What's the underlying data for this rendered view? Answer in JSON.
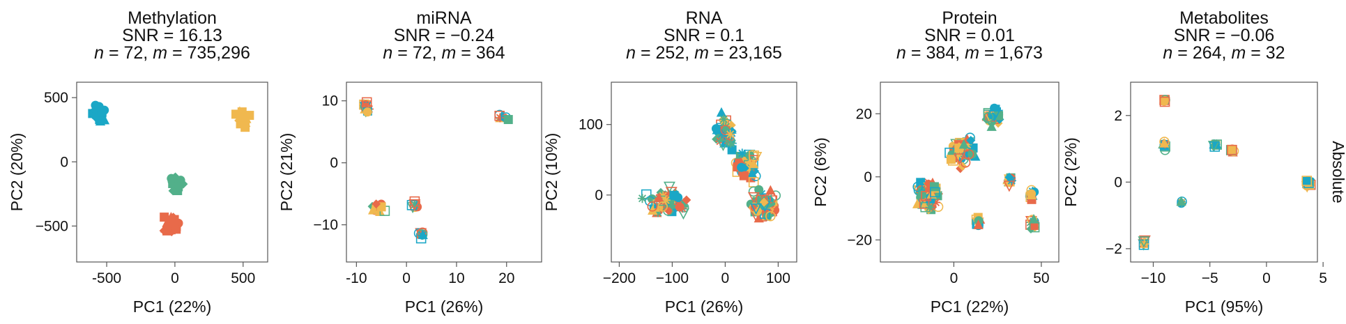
{
  "figure_side_label": "Absolute",
  "colors": {
    "teal": "#1aa7c6",
    "orange": "#f0b84f",
    "red": "#e86a4a",
    "green": "#52b08a"
  },
  "chart_data": [
    {
      "type": "scatter",
      "title_lines": [
        "Methylation",
        "SNR = 16.13"
      ],
      "subtitle": {
        "n_label": "n",
        "n_value": " = 72, ",
        "m_label": "m",
        "m_value": " = 735,296"
      },
      "xlabel": "PC1 (22%)",
      "ylabel": "PC2 (20%)",
      "xlim": [
        -720,
        680
      ],
      "ylim": [
        -780,
        620
      ],
      "xticks": [
        -500,
        0,
        500
      ],
      "xtick_labels": [
        "-500",
        "0",
        "500"
      ],
      "yticks": [
        -500,
        0,
        500
      ],
      "ytick_labels": [
        "−500",
        "0",
        "500"
      ],
      "clusters": [
        {
          "x": -560,
          "y": 380,
          "sx": 70,
          "sy": 90,
          "n": 22,
          "c": "teal"
        },
        {
          "x": 500,
          "y": 330,
          "sx": 70,
          "sy": 90,
          "n": 22,
          "c": "orange"
        },
        {
          "x": 20,
          "y": -170,
          "sx": 60,
          "sy": 90,
          "n": 16,
          "c": "green"
        },
        {
          "x": -20,
          "y": -500,
          "sx": 90,
          "sy": 110,
          "n": 20,
          "c": "red"
        }
      ]
    },
    {
      "type": "scatter",
      "title_lines": [
        "miRNA",
        "SNR = −0.24"
      ],
      "subtitle": {
        "n_label": "n",
        "n_value": " = 72, ",
        "m_label": "m",
        "m_value": " = 364"
      },
      "xlabel": "PC1 (26%)",
      "ylabel": "PC2 (21%)",
      "xlim": [
        -12,
        27
      ],
      "ylim": [
        -16,
        13
      ],
      "xticks": [
        -10,
        0,
        10,
        20
      ],
      "xtick_labels": [
        "-10",
        "0",
        "10",
        "20"
      ],
      "yticks": [
        -10,
        0,
        10
      ],
      "ytick_labels": [
        "−10",
        "0",
        "10"
      ],
      "clusters": [
        {
          "x": -8.3,
          "y": 9.0,
          "sx": 0.9,
          "sy": 1.2,
          "n": 18,
          "c": "mix"
        },
        {
          "x": 19.5,
          "y": 7.5,
          "sx": 2.2,
          "sy": 0.8,
          "n": 8,
          "c": "mix"
        },
        {
          "x": -5.5,
          "y": -7.2,
          "sx": 1.5,
          "sy": 1.0,
          "n": 14,
          "c": "mix"
        },
        {
          "x": 1.5,
          "y": -6.8,
          "sx": 1.2,
          "sy": 0.7,
          "n": 8,
          "c": "mix"
        },
        {
          "x": 3.0,
          "y": -11.5,
          "sx": 1.3,
          "sy": 1.2,
          "n": 10,
          "c": "mix"
        }
      ]
    },
    {
      "type": "scatter",
      "title_lines": [
        "RNA",
        "SNR = 0.1"
      ],
      "subtitle": {
        "n_label": "n",
        "n_value": " = 252, ",
        "m_label": "m",
        "m_value": " = 23,165"
      },
      "xlabel": "PC1 (26%)",
      "ylabel": "PC2 (10%)",
      "xlim": [
        -215,
        135
      ],
      "ylim": [
        -95,
        160
      ],
      "xticks": [
        -200,
        -100,
        0,
        100
      ],
      "xtick_labels": [
        "−200",
        "−100",
        "0",
        "100"
      ],
      "yticks": [
        0,
        100
      ],
      "ytick_labels": [
        "0",
        "100"
      ],
      "clusters": [
        {
          "x": -110,
          "y": -10,
          "sx": 55,
          "sy": 28,
          "n": 60,
          "c": "mix"
        },
        {
          "x": 0,
          "y": 90,
          "sx": 25,
          "sy": 35,
          "n": 45,
          "c": "mix"
        },
        {
          "x": 40,
          "y": 40,
          "sx": 28,
          "sy": 30,
          "n": 55,
          "c": "mix"
        },
        {
          "x": 70,
          "y": -15,
          "sx": 35,
          "sy": 28,
          "n": 70,
          "c": "mix"
        }
      ]
    },
    {
      "type": "scatter",
      "title_lines": [
        "Protein",
        "SNR = 0.01"
      ],
      "subtitle": {
        "n_label": "n",
        "n_value": " = 384, ",
        "m_label": "m",
        "m_value": " = 1,673"
      },
      "xlabel": "PC1 (22%)",
      "ylabel": "PC2 (6%)",
      "xlim": [
        -42,
        60
      ],
      "ylim": [
        -27,
        30
      ],
      "xticks": [
        0,
        50
      ],
      "xtick_labels": [
        "0",
        "50"
      ],
      "yticks": [
        -20,
        0,
        20
      ],
      "ytick_labels": [
        "−20",
        "0",
        "20"
      ],
      "clusters": [
        {
          "x": -15,
          "y": -6,
          "sx": 9,
          "sy": 6,
          "n": 70,
          "c": "mix"
        },
        {
          "x": 5,
          "y": 8,
          "sx": 9,
          "sy": 6,
          "n": 70,
          "c": "mix"
        },
        {
          "x": 22,
          "y": 19,
          "sx": 5,
          "sy": 4,
          "n": 30,
          "c": "mix"
        },
        {
          "x": 14,
          "y": -14,
          "sx": 2,
          "sy": 2,
          "n": 10,
          "c": "mix"
        },
        {
          "x": 32,
          "y": -1,
          "sx": 2,
          "sy": 2,
          "n": 10,
          "c": "mix"
        },
        {
          "x": 45,
          "y": -6,
          "sx": 3,
          "sy": 2.5,
          "n": 12,
          "c": "mix"
        },
        {
          "x": 45,
          "y": -15,
          "sx": 2.5,
          "sy": 3,
          "n": 12,
          "c": "mix"
        }
      ]
    },
    {
      "type": "scatter",
      "title_lines": [
        "Metabolites",
        "SNR = −0.06"
      ],
      "subtitle": {
        "n_label": "n",
        "n_value": " = 264, ",
        "m_label": "m",
        "m_value": " = 32"
      },
      "xlabel": "PC1 (95%)",
      "ylabel": "PC2 (2%)",
      "xlim": [
        -12,
        4.5
      ],
      "ylim": [
        -2.4,
        3.0
      ],
      "xticks": [
        -10,
        -5,
        0,
        5
      ],
      "xtick_labels": [
        "−10",
        "−5",
        "0",
        "5"
      ],
      "yticks": [
        -2,
        0,
        2
      ],
      "ytick_labels": [
        "−2",
        "0",
        "2"
      ],
      "clusters": [
        {
          "x": -9.0,
          "y": 2.45,
          "sx": 0.12,
          "sy": 0.08,
          "n": 8,
          "c": "mix"
        },
        {
          "x": -9.0,
          "y": 1.1,
          "sx": 0.2,
          "sy": 0.2,
          "n": 10,
          "c": "mix"
        },
        {
          "x": -4.5,
          "y": 1.1,
          "sx": 0.3,
          "sy": 0.07,
          "n": 8,
          "c": "mix"
        },
        {
          "x": -3.0,
          "y": 0.95,
          "sx": 0.25,
          "sy": 0.12,
          "n": 8,
          "c": "mix"
        },
        {
          "x": 3.7,
          "y": -0.05,
          "sx": 0.3,
          "sy": 0.12,
          "n": 25,
          "c": "mix"
        },
        {
          "x": -7.5,
          "y": -0.6,
          "sx": 0.12,
          "sy": 0.1,
          "n": 4,
          "c": "mix"
        },
        {
          "x": -10.8,
          "y": -1.8,
          "sx": 0.15,
          "sy": 0.12,
          "n": 8,
          "c": "mix"
        }
      ]
    }
  ]
}
